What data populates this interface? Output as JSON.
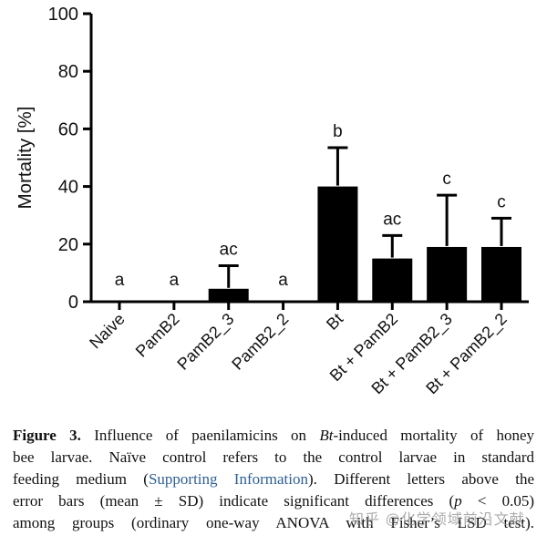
{
  "colors": {
    "bar": "#000000",
    "axis": "#000000",
    "text": "#111111",
    "link": "#2e5f96",
    "watermark": "#8c8c8c"
  },
  "chart_data": {
    "type": "bar",
    "title": "",
    "xlabel": "",
    "ylabel": "Mortality [%]",
    "ylim": [
      0,
      100
    ],
    "yticks": [
      0,
      20,
      40,
      60,
      80,
      100
    ],
    "grid": false,
    "legend": "none",
    "categories": [
      "Naive",
      "PamB2",
      "PamB2_3",
      "PamB2_2",
      "Bt",
      "Bt + PamB2",
      "Bt + PamB2_3",
      "Bt + PamB2_2"
    ],
    "values": [
      0,
      0,
      4.5,
      0,
      40,
      15,
      19,
      19
    ],
    "sd_upper": [
      0,
      0,
      8,
      0,
      13.5,
      8,
      18,
      10
    ],
    "sig_letters": [
      "a",
      "a",
      "ac",
      "a",
      "b",
      "ac",
      "c",
      "c"
    ],
    "error_bar_style": "mean + SD, upper only"
  },
  "caption": {
    "lines": [
      [
        {
          "t": "Figure 3.",
          "s": "bold"
        },
        {
          "t": " Influence of paenilamicins on ",
          "s": "n"
        },
        {
          "t": "Bt",
          "s": "italic"
        },
        {
          "t": "-induced mortality of honey",
          "s": "n"
        }
      ],
      [
        {
          "t": "bee larvae. Naïve control refers to the control larvae in standard",
          "s": "n"
        }
      ],
      [
        {
          "t": "feeding medium (",
          "s": "n"
        },
        {
          "t": "Supporting Information",
          "s": "link"
        },
        {
          "t": "). Different letters above the",
          "s": "n"
        }
      ],
      [
        {
          "t": "error bars (mean ± SD) indicate significant differences (",
          "s": "n"
        },
        {
          "t": "p",
          "s": "italic"
        },
        {
          "t": " < 0.05)",
          "s": "n"
        }
      ],
      [
        {
          "t": "among groups (ordinary one-way ANOVA with Fisher’s LSD test).",
          "s": "n"
        }
      ]
    ]
  },
  "watermark": {
    "text": "知乎 @化学领域前沿文献"
  }
}
